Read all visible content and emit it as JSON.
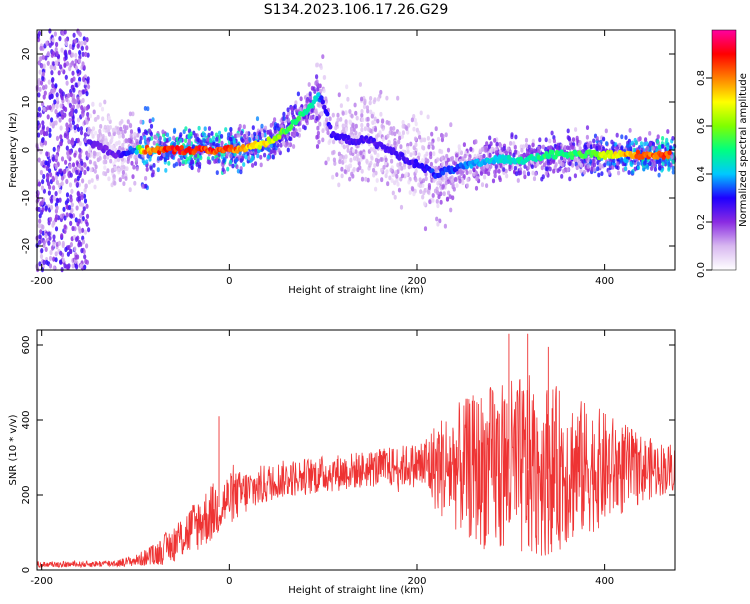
{
  "title": "S134.2023.106.17.26.G29",
  "chart_data": [
    {
      "id": "spectrogram",
      "type": "heatmap",
      "xlabel": "Height of straight line (km)",
      "ylabel": "Frequency (Hz)",
      "xlim": [
        -205,
        475
      ],
      "ylim": [
        -25,
        25
      ],
      "xticks": [
        "-200",
        "0",
        "200",
        "400"
      ],
      "yticks": [
        "-20",
        "-10",
        "0",
        "10",
        "20"
      ],
      "colorbar": {
        "label": "Normalized spectral amplitude",
        "range": [
          0,
          1
        ],
        "ticks": [
          "0.0",
          "0.2",
          "0.4",
          "0.6",
          "0.8"
        ],
        "colormap": [
          "#ffffff",
          "#d8b8f0",
          "#8a2be2",
          "#1e00ff",
          "#00c8ff",
          "#00ff80",
          "#7fff00",
          "#ffff00",
          "#ff8000",
          "#ff0000",
          "#ff00a0"
        ]
      },
      "ridge": {
        "x": [
          -160,
          -140,
          -120,
          -100,
          -90,
          -60,
          -30,
          0,
          20,
          40,
          60,
          80,
          95,
          100,
          110,
          130,
          150,
          170,
          200,
          220,
          240,
          260,
          280,
          300,
          320,
          340,
          360,
          380,
          400,
          420,
          440,
          475
        ],
        "freq": [
          2,
          1,
          -1,
          0,
          0,
          0,
          0,
          0,
          0.5,
          1.5,
          4,
          8,
          11,
          10,
          3,
          2,
          2,
          0,
          -3,
          -5,
          -4,
          -3,
          -2,
          -2,
          -2,
          -1,
          -1,
          -1,
          -1,
          -1,
          -1,
          -1
        ],
        "amplitude": [
          0.3,
          0.25,
          0.25,
          0.4,
          0.85,
          0.95,
          0.95,
          0.9,
          0.8,
          0.75,
          0.6,
          0.55,
          0.45,
          0.3,
          0.3,
          0.28,
          0.28,
          0.28,
          0.3,
          0.35,
          0.35,
          0.4,
          0.45,
          0.5,
          0.5,
          0.55,
          0.55,
          0.6,
          0.7,
          0.8,
          0.9,
          0.9
        ]
      },
      "noise_region_x": [
        -205,
        -150
      ]
    },
    {
      "id": "snr",
      "type": "line",
      "xlabel": "Height of straight line (km)",
      "ylabel": "SNR (10 * v/v)",
      "xlim": [
        -205,
        475
      ],
      "ylim": [
        0,
        640
      ],
      "xticks": [
        "-200",
        "0",
        "200",
        "400"
      ],
      "yticks": [
        "0",
        "200",
        "400",
        "600"
      ],
      "series_color": "#ee3333",
      "envelope": {
        "x": [
          -205,
          -160,
          -120,
          -100,
          -80,
          -60,
          -40,
          -20,
          0,
          20,
          50,
          100,
          150,
          200,
          230,
          260,
          290,
          320,
          350,
          380,
          410,
          440,
          475
        ],
        "mean": [
          15,
          15,
          18,
          25,
          40,
          70,
          110,
          150,
          190,
          210,
          240,
          255,
          270,
          280,
          275,
          270,
          270,
          270,
          270,
          270,
          270,
          270,
          270
        ],
        "spread": [
          8,
          8,
          10,
          15,
          30,
          50,
          70,
          80,
          70,
          60,
          50,
          50,
          50,
          60,
          150,
          200,
          240,
          250,
          220,
          180,
          140,
          90,
          60
        ]
      },
      "spikes": [
        {
          "x": -11,
          "value": 410
        },
        {
          "x": 298,
          "value": 630
        },
        {
          "x": 318,
          "value": 630
        },
        {
          "x": 340,
          "value": 595
        }
      ]
    }
  ]
}
